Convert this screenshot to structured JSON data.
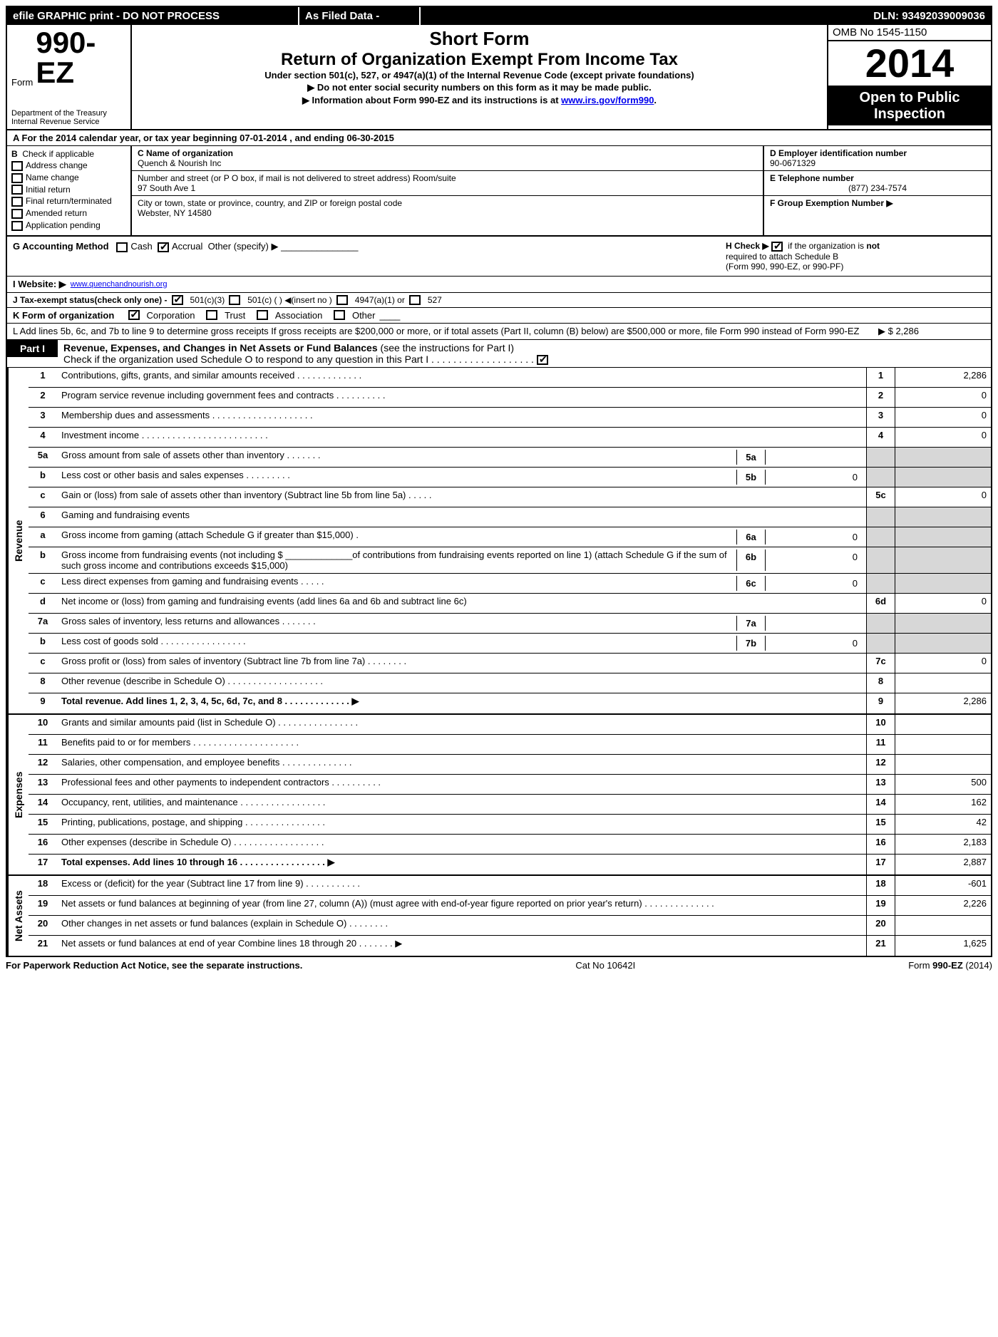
{
  "topbar": {
    "left": "efile GRAPHIC print - DO NOT PROCESS",
    "mid": "As Filed Data -",
    "right": "DLN: 93492039009036"
  },
  "title": {
    "form_label": "Form",
    "form_num": "990-EZ",
    "dept1": "Department of the Treasury",
    "dept2": "Internal Revenue Service",
    "short": "Short Form",
    "ret": "Return of Organization Exempt From Income Tax",
    "under": "Under section 501(c), 527, or 4947(a)(1) of the Internal Revenue Code (except private foundations)",
    "note1": "▶ Do not enter social security numbers on this form as it may be made public.",
    "note2a": "▶ Information about Form 990-EZ and its instructions is at ",
    "note2link": "www.irs.gov/form990",
    "note2b": ".",
    "omb": "OMB No  1545-1150",
    "year": "2014",
    "open1": "Open to Public",
    "open2": "Inspection"
  },
  "hdr": {
    "lineA": "A  For the 2014 calendar year, or tax year beginning 07-01-2014             , and ending 06-30-2015",
    "B": "B",
    "B_lbl": "Check if applicable",
    "b_items": [
      "Address change",
      "Name change",
      "Initial return",
      "Final return/terminated",
      "Amended return",
      "Application pending"
    ],
    "C_lbl": "C Name of organization",
    "C_val": "Quench & Nourish Inc",
    "addr_lbl": "Number and street (or P  O  box, if mail is not delivered to street address) Room/suite",
    "addr_val": "97 South Ave 1",
    "city_lbl": "City or town, state or province, country, and ZIP or foreign postal code",
    "city_val": "Webster, NY  14580",
    "D_lbl": "D Employer identification number",
    "D_val": "90-0671329",
    "E_lbl": "E Telephone number",
    "E_val": "(877) 234-7574",
    "F_lbl": "F Group Exemption Number  ▶"
  },
  "mid": {
    "G": "G Accounting Method",
    "G_cash": "Cash",
    "G_accrual": "Accrual",
    "G_other": "Other (specify) ▶",
    "H1": "H  Check ▶",
    "H2": "if the organization is",
    "H3": "not",
    "H4": "required to attach Schedule B",
    "H5": "(Form 990, 990-EZ, or 990-PF)",
    "I": "I Website: ▶",
    "I_val": "www.quenchandnourish.org",
    "J": "J Tax-exempt status(check only one) -",
    "J1": "501(c)(3)",
    "J2": "501(c) (   ) ◀(insert no )",
    "J3": "4947(a)(1) or",
    "J4": "527",
    "K": "K Form of organization",
    "K1": "Corporation",
    "K2": "Trust",
    "K3": "Association",
    "K4": "Other",
    "L1": "L Add lines 5b, 6c, and 7b to line 9 to determine gross receipts  If gross receipts are $200,000 or more, or if total assets (Part II, column (B) below) are $500,000 or more, file Form 990 instead of Form 990-EZ",
    "L_amt": "▶ $ 2,286"
  },
  "part1": {
    "tag": "Part I",
    "title_b": "Revenue, Expenses, and Changes in Net Assets or Fund Balances",
    "title_rest": " (see the instructions for Part I)",
    "check": "Check if the organization used Schedule O to respond to any question in this Part I  . . . . . . . . . . . . . . . . . . ."
  },
  "revenue": [
    {
      "n": "1",
      "d": "Contributions, gifts, grants, and similar amounts received    .  .  .  .  .  .  .  .  .  .  .  .  .",
      "b": "1",
      "v": "2,286"
    },
    {
      "n": "2",
      "d": "Program service revenue including government fees and contracts    .  .  .  .  .  .  .  .  .  .",
      "b": "2",
      "v": "0"
    },
    {
      "n": "3",
      "d": "Membership dues and assessments     .  .  .  .  .  .  .  .  .  .  .  .  .  .  .  .  .  .  .  .",
      "b": "3",
      "v": "0"
    },
    {
      "n": "4",
      "d": "Investment income     .  .  .  .  .  .  .  .  .  .  .  .  .  .  .  .  .  .  .  .  .  .  .  .  .",
      "b": "4",
      "v": "0"
    }
  ],
  "rev5a": {
    "n": "5a",
    "d": "Gross amount from sale of assets other than inventory        .  .  .  .  .  .  .",
    "ib": "5a",
    "iv": ""
  },
  "rev5b": {
    "n": "b",
    "d": "Less  cost or other basis and sales expenses          .  .  .  .  .  .  .  .  .",
    "ib": "5b",
    "iv": "0"
  },
  "rev5c": {
    "n": "c",
    "d": "Gain or (loss) from sale of assets other than inventory (Subtract line 5b from line 5a)   .  .  .  .  .",
    "b": "5c",
    "v": "0"
  },
  "rev6": {
    "n": "6",
    "d": "Gaming and fundraising events"
  },
  "rev6a": {
    "n": "a",
    "d": "Gross income from gaming (attach Schedule G if greater than $15,000)       .",
    "ib": "6a",
    "iv": "0"
  },
  "rev6b": {
    "n": "b",
    "d": "Gross income from fundraising events (not including $ _____________of contributions from fundraising events reported on line 1) (attach Schedule G if the sum of such gross income and contributions exceeds $15,000)",
    "ib": "6b",
    "iv": "0"
  },
  "rev6c": {
    "n": "c",
    "d": "Less  direct expenses from gaming and fundraising events      .  .  .  .  .",
    "ib": "6c",
    "iv": "0"
  },
  "rev6d": {
    "n": "d",
    "d": "Net income or (loss) from gaming and fundraising events (add lines 6a and 6b and subtract line 6c)",
    "b": "6d",
    "v": "0"
  },
  "rev7a": {
    "n": "7a",
    "d": "Gross sales of inventory, less returns and allowances        .  .  .  .  .  .  .",
    "ib": "7a",
    "iv": ""
  },
  "rev7b": {
    "n": "b",
    "d": "Less  cost of goods sold        .  .  .  .  .  .  .  .  .  .  .  .  .  .  .  .  .",
    "ib": "7b",
    "iv": "0"
  },
  "rev7c": {
    "n": "c",
    "d": "Gross profit or (loss) from sales of inventory (Subtract line 7b from line 7a)    .  .  .  .  .  .  .  .",
    "b": "7c",
    "v": "0"
  },
  "rev8": {
    "n": "8",
    "d": "Other revenue (describe in Schedule O)   .  .  .  .  .  .  .  .  .  .  .  .  .  .  .  .  .  .  .",
    "b": "8",
    "v": ""
  },
  "rev9": {
    "n": "9",
    "d": "Total revenue. Add lines 1, 2, 3, 4, 5c, 6d, 7c, and 8    .  .  .  .  .  .  .  .  .  .  .  .  .   ▶",
    "b": "9",
    "v": "2,286",
    "bold": true
  },
  "expenses": [
    {
      "n": "10",
      "d": "Grants and similar amounts paid (list in Schedule O)  .  .  .  .  .  .  .  .  .  .  .  .  .  .  .  .",
      "b": "10",
      "v": ""
    },
    {
      "n": "11",
      "d": "Benefits paid to or for members    .  .  .  .  .  .  .  .  .  .  .  .  .  .  .  .  .  .  .  .  .",
      "b": "11",
      "v": ""
    },
    {
      "n": "12",
      "d": "Salaries, other compensation, and employee benefits      .  .  .  .  .  .  .  .  .  .  .  .  .  .",
      "b": "12",
      "v": ""
    },
    {
      "n": "13",
      "d": "Professional fees and other payments to independent contractors      .  .  .  .  .  .  .  .  .  .",
      "b": "13",
      "v": "500"
    },
    {
      "n": "14",
      "d": "Occupancy, rent, utilities, and maintenance      .  .  .  .  .  .  .  .  .  .  .  .  .  .  .  .  .",
      "b": "14",
      "v": "162"
    },
    {
      "n": "15",
      "d": "Printing, publications, postage, and shipping      .  .  .  .  .  .  .  .  .  .  .  .  .  .  .  .",
      "b": "15",
      "v": "42"
    },
    {
      "n": "16",
      "d": "Other expenses (describe in Schedule O)     .  .  .  .  .  .  .  .  .  .  .  .  .  .  .  .  .  .",
      "b": "16",
      "v": "2,183"
    },
    {
      "n": "17",
      "d": "Total expenses. Add lines 10 through 16      .  .  .  .  .  .  .  .  .  .  .  .  .  .  .  .  .   ▶",
      "b": "17",
      "v": "2,887",
      "bold": true
    }
  ],
  "netassets": [
    {
      "n": "18",
      "d": "Excess or (deficit) for the year (Subtract line 17 from line 9)        .  .  .  .  .  .  .  .  .  .  .",
      "b": "18",
      "v": "-601"
    },
    {
      "n": "19",
      "d": "Net assets or fund balances at beginning of year (from line 27, column (A)) (must agree with end-of-year figure reported on prior year's return)        .  .  .  .  .  .  .  .  .  .  .  .  .  .",
      "b": "19",
      "v": "2,226"
    },
    {
      "n": "20",
      "d": "Other changes in net assets or fund balances (explain in Schedule O)       .  .  .  .  .  .  .  .",
      "b": "20",
      "v": ""
    },
    {
      "n": "21",
      "d": "Net assets or fund balances at end of year  Combine lines 18 through 20     .  .  .  .  .  .  .  ▶",
      "b": "21",
      "v": "1,625"
    }
  ],
  "sides": {
    "rev": "Revenue",
    "exp": "Expenses",
    "na": "Net Assets"
  },
  "footer": {
    "left": "For Paperwork Reduction Act Notice, see the separate instructions.",
    "mid": "Cat No  10642I",
    "right": "Form 990-EZ (2014)"
  }
}
